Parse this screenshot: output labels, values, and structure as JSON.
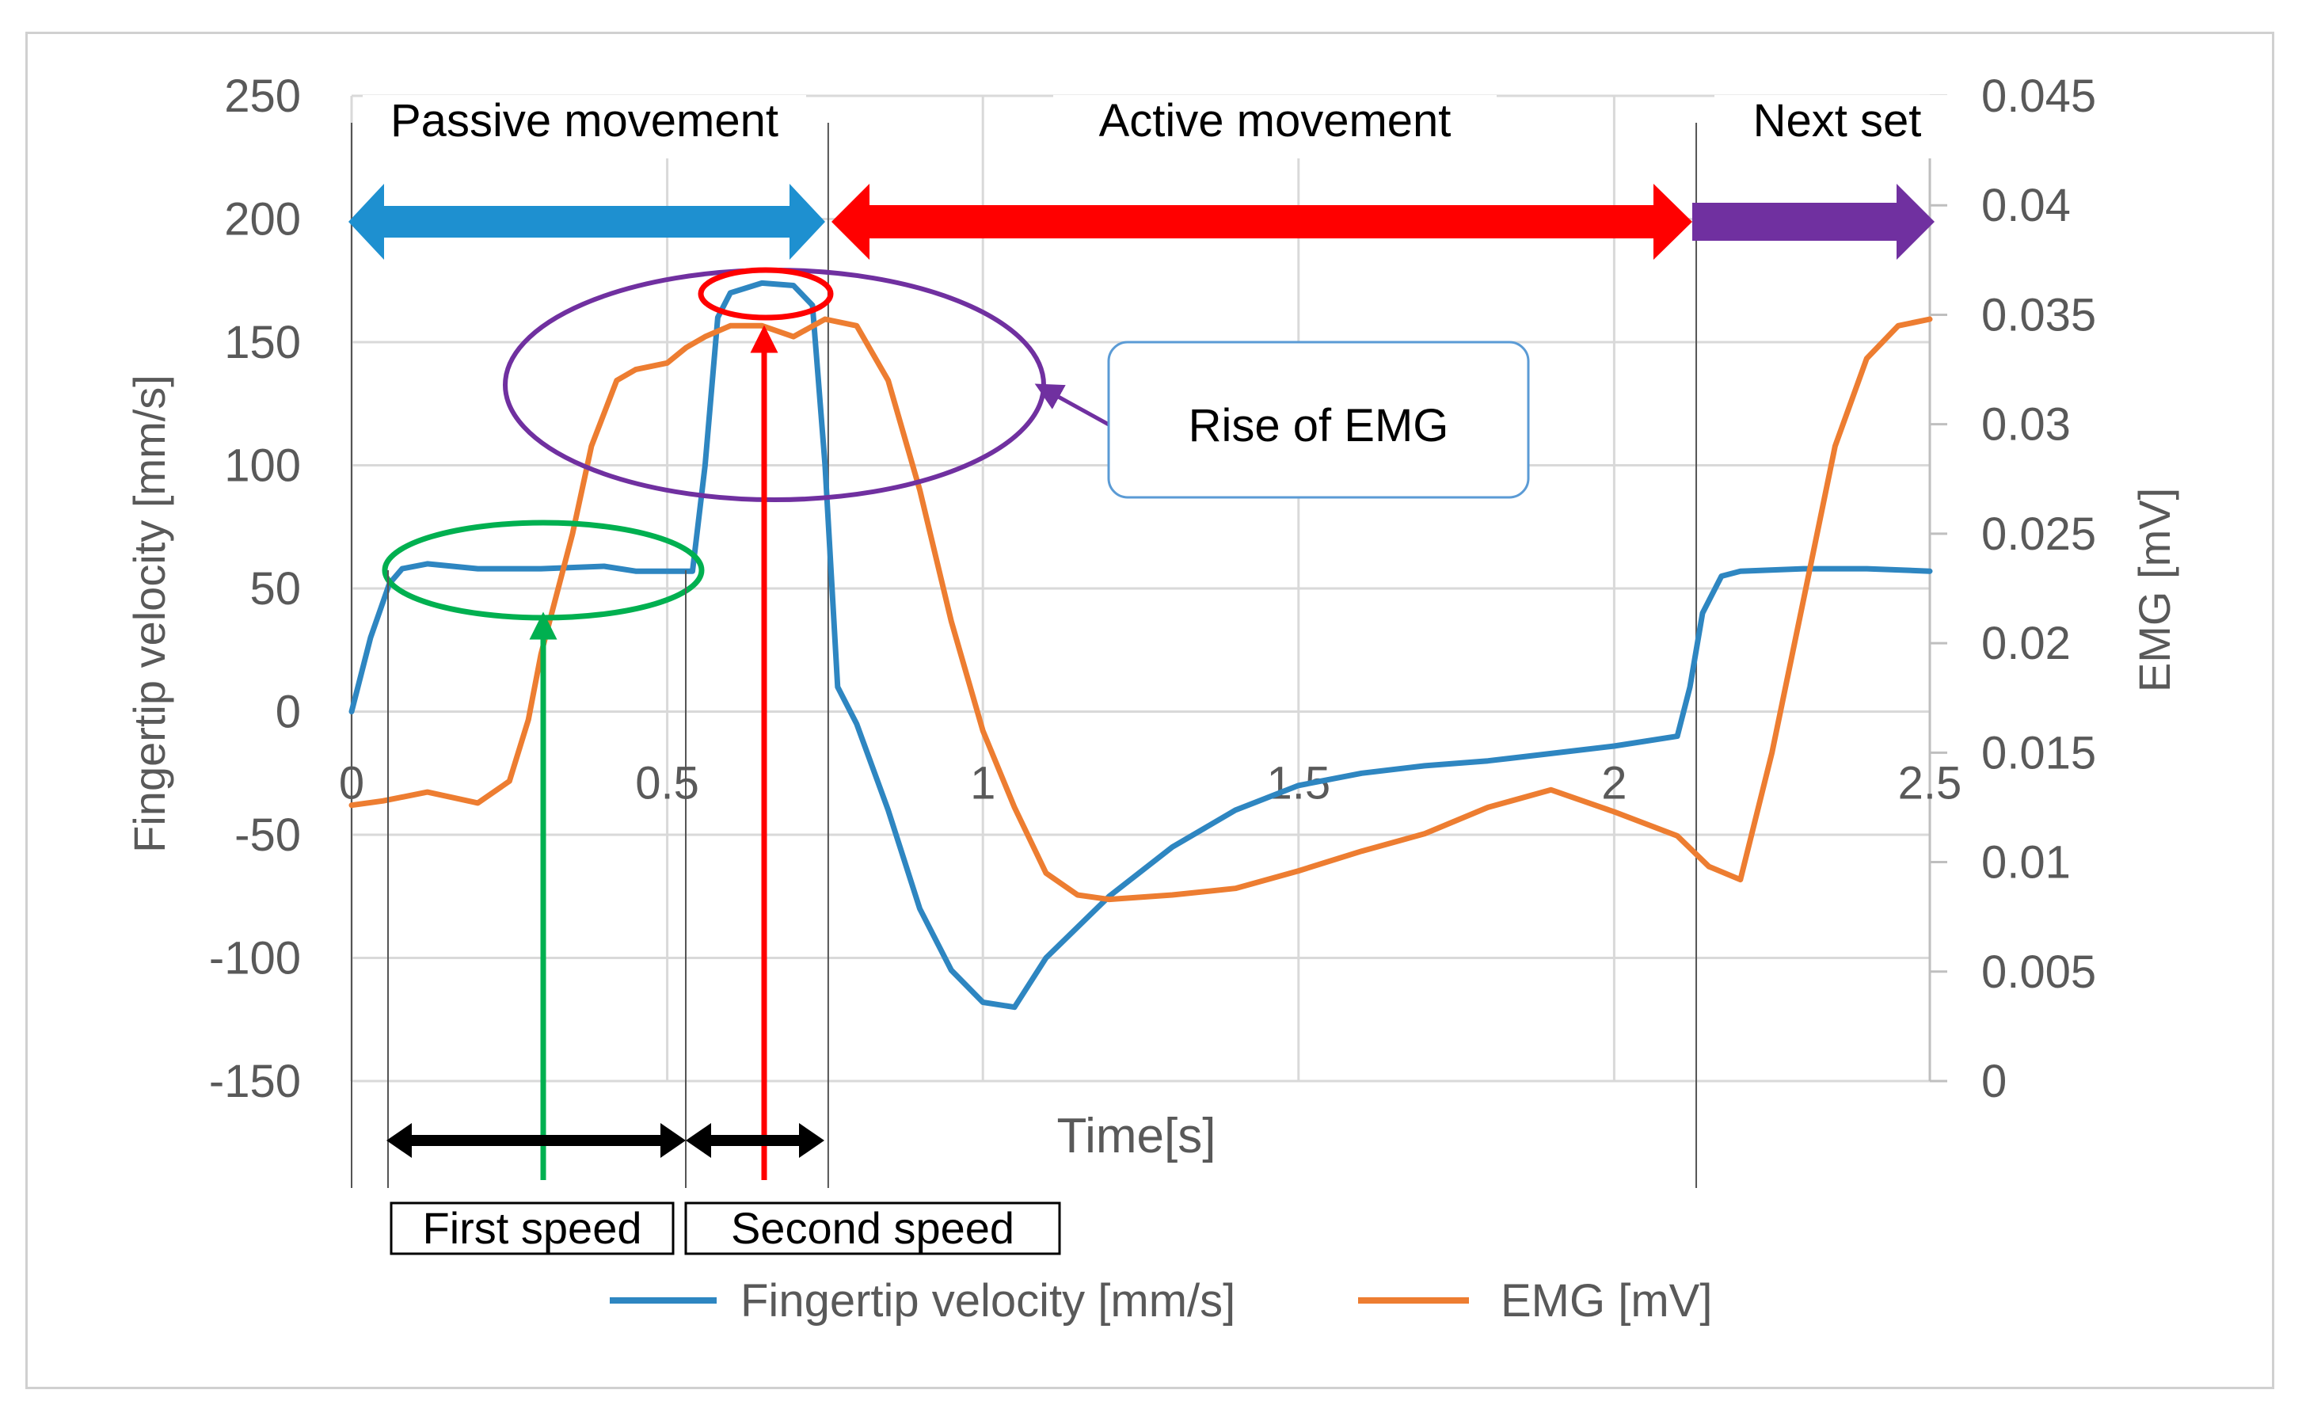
{
  "chart_data": {
    "type": "line",
    "xlabel": "Time[s]",
    "ylabel": "Fingertip velocity [mm/s]",
    "y2label": "EMG [mV]",
    "xlim": [
      0,
      2.5
    ],
    "ylim": [
      -150,
      250
    ],
    "y2lim": [
      0,
      0.045
    ],
    "x_ticks": [
      "0",
      "0.5",
      "1",
      "1.5",
      "2",
      "2.5"
    ],
    "y_ticks": [
      "250",
      "200",
      "150",
      "100",
      "50",
      "0",
      "-50",
      "-100",
      "-150"
    ],
    "y2_ticks": [
      "0.045",
      "0.04",
      "0.035",
      "0.03",
      "0.025",
      "0.02",
      "0.015",
      "0.01",
      "0.005",
      "0"
    ],
    "grid": true,
    "legend_position": "bottom",
    "series": [
      {
        "name": "Fingertip velocity [mm/s]",
        "color": "#2E86C1",
        "axis": "left",
        "x": [
          0,
          0.03,
          0.06,
          0.08,
          0.12,
          0.2,
          0.3,
          0.4,
          0.45,
          0.5,
          0.54,
          0.56,
          0.58,
          0.6,
          0.65,
          0.7,
          0.73,
          0.75,
          0.77,
          0.8,
          0.85,
          0.9,
          0.95,
          1.0,
          1.05,
          1.1,
          1.2,
          1.3,
          1.4,
          1.5,
          1.6,
          1.7,
          1.8,
          1.9,
          2.0,
          2.1,
          2.12,
          2.14,
          2.17,
          2.2,
          2.3,
          2.4,
          2.5
        ],
        "y": [
          0,
          30,
          52,
          58,
          60,
          58,
          58,
          59,
          57,
          57,
          57,
          100,
          160,
          170,
          174,
          173,
          165,
          100,
          10,
          -5,
          -40,
          -80,
          -105,
          -118,
          -120,
          -100,
          -75,
          -55,
          -40,
          -30,
          -25,
          -22,
          -20,
          -17,
          -14,
          -10,
          10,
          40,
          55,
          57,
          58,
          58,
          57
        ]
      },
      {
        "name": "EMG [mV]",
        "color": "#ED7D31",
        "axis": "right",
        "x": [
          0,
          0.05,
          0.12,
          0.2,
          0.25,
          0.28,
          0.3,
          0.35,
          0.38,
          0.42,
          0.45,
          0.5,
          0.53,
          0.56,
          0.6,
          0.65,
          0.7,
          0.75,
          0.8,
          0.85,
          0.9,
          0.95,
          1.0,
          1.05,
          1.1,
          1.15,
          1.2,
          1.3,
          1.4,
          1.5,
          1.6,
          1.7,
          1.8,
          1.9,
          2.0,
          2.1,
          2.15,
          2.2,
          2.25,
          2.3,
          2.35,
          2.4,
          2.45,
          2.5
        ],
        "y": [
          0.0126,
          0.0128,
          0.0132,
          0.0127,
          0.0137,
          0.0165,
          0.0195,
          0.025,
          0.029,
          0.032,
          0.0325,
          0.0328,
          0.0335,
          0.034,
          0.0345,
          0.0345,
          0.034,
          0.0348,
          0.0345,
          0.032,
          0.027,
          0.021,
          0.016,
          0.0125,
          0.0095,
          0.0085,
          0.0083,
          0.0085,
          0.0088,
          0.0096,
          0.0105,
          0.0113,
          0.0125,
          0.0133,
          0.0123,
          0.0112,
          0.0098,
          0.0092,
          0.015,
          0.022,
          0.029,
          0.033,
          0.0345,
          0.0348
        ]
      }
    ]
  },
  "phases": {
    "passive": "Passive movement",
    "active": "Active movement",
    "next": "Next set"
  },
  "annotations": {
    "callout": "Rise of EMG",
    "first_speed": "First speed",
    "second_speed": "Second speed"
  },
  "colors": {
    "passive_arrow": "#1E90D0",
    "active_arrow": "#FF0000",
    "next_arrow": "#7030A0",
    "grid": "#D9D9D9",
    "axis_text": "#595959",
    "first_speed_marker": "#00B050",
    "second_speed_marker": "#FF0000",
    "emg_rise_marker": "#7030A0"
  }
}
